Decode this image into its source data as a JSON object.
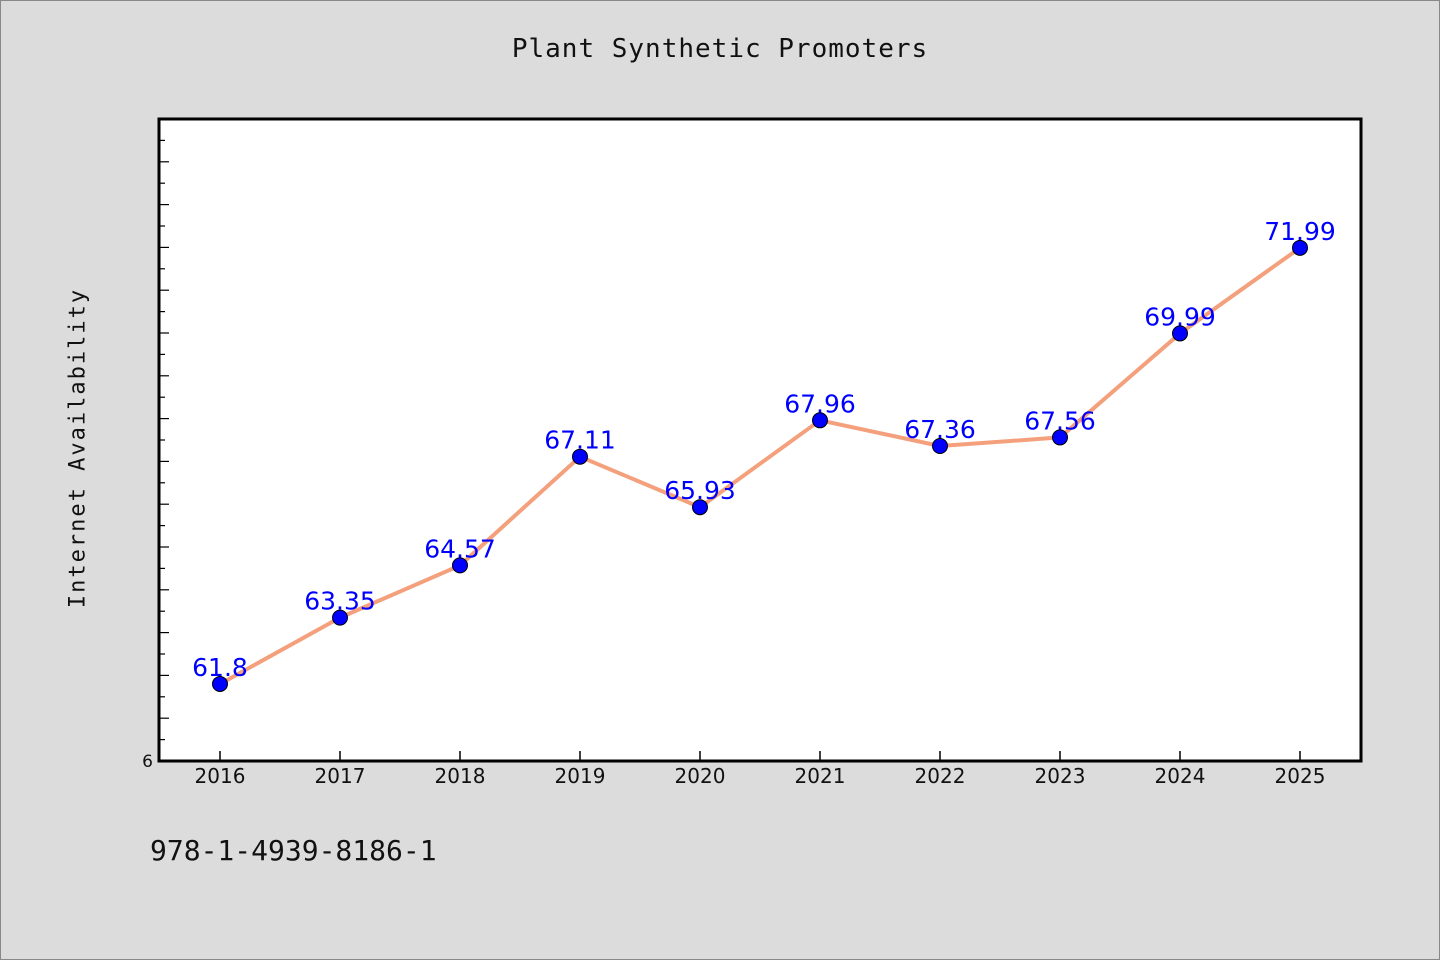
{
  "chart_data": {
    "type": "line",
    "title": "Plant Synthetic Promoters",
    "xlabel": "",
    "ylabel": "Internet Availability",
    "categories": [
      "2016",
      "2017",
      "2018",
      "2019",
      "2020",
      "2021",
      "2022",
      "2023",
      "2024",
      "2025"
    ],
    "series": [
      {
        "values": [
          61.8,
          63.35,
          64.57,
          67.11,
          65.93,
          67.96,
          67.36,
          67.56,
          69.99,
          71.99
        ]
      }
    ],
    "data_labels": [
      "61.8",
      "63.35",
      "64.57",
      "67.11",
      "65.93",
      "67.96",
      "67.36",
      "67.56",
      "69.99",
      "71.99"
    ],
    "ylim": [
      60,
      75
    ],
    "y_tick_labels": [
      "6"
    ],
    "grid": false,
    "legend": "none",
    "colors": {
      "line": "#f4a07c",
      "marker": "#0000ff",
      "label": "#0000ff",
      "background": "#dcdcdc",
      "plot_bg": "#ffffff"
    }
  },
  "footer": {
    "isbn": "978-1-4939-8186-1"
  }
}
